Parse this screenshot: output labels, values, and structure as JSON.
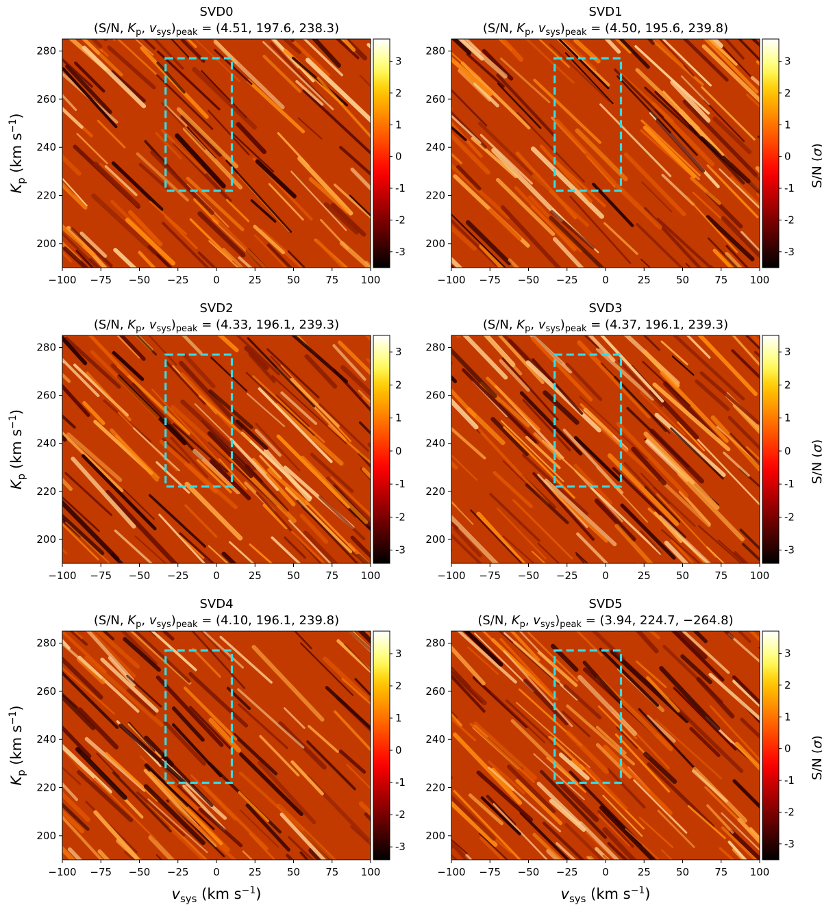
{
  "chart_data": [
    {
      "type": "heatmap",
      "title": "SVD0",
      "peak_label": {
        "sn": "4.51",
        "kp": "197.6",
        "vsys": "238.3"
      },
      "x_ticks": [
        -100,
        -75,
        -50,
        -25,
        0,
        25,
        50,
        75,
        100
      ],
      "y_ticks": [
        200,
        220,
        240,
        260,
        280
      ],
      "xlim": [
        -100,
        100
      ],
      "ylim": [
        190,
        285
      ],
      "colorbar_ticks": [
        -3,
        -2,
        -1,
        0,
        1,
        2,
        3
      ],
      "colorbar_range": [
        -3.5,
        3.7
      ],
      "ylabel": "K_p (km s^-1)",
      "xlabel": "",
      "colorbar_label": "",
      "box": {
        "vsys": [
          -33,
          10
        ],
        "kp": [
          222,
          277
        ]
      },
      "colormap": "gist_heat",
      "box_color": "#33dde6"
    },
    {
      "type": "heatmap",
      "title": "SVD1",
      "peak_label": {
        "sn": "4.50",
        "kp": "195.6",
        "vsys": "239.8"
      },
      "x_ticks": [
        -100,
        -75,
        -50,
        -25,
        0,
        25,
        50,
        75,
        100
      ],
      "y_ticks": [
        200,
        220,
        240,
        260,
        280
      ],
      "xlim": [
        -100,
        100
      ],
      "ylim": [
        190,
        285
      ],
      "colorbar_ticks": [
        -3,
        -2,
        -1,
        0,
        1,
        2,
        3
      ],
      "colorbar_range": [
        -3.5,
        3.7
      ],
      "ylabel": "",
      "xlabel": "",
      "colorbar_label": "S/N (σ)",
      "box": {
        "vsys": [
          -33,
          10
        ],
        "kp": [
          222,
          277
        ]
      },
      "colormap": "gist_heat",
      "box_color": "#33dde6"
    },
    {
      "type": "heatmap",
      "title": "SVD2",
      "peak_label": {
        "sn": "4.33",
        "kp": "196.1",
        "vsys": "239.3"
      },
      "x_ticks": [
        -100,
        -75,
        -50,
        -25,
        0,
        25,
        50,
        75,
        100
      ],
      "y_ticks": [
        200,
        220,
        240,
        260,
        280
      ],
      "xlim": [
        -100,
        100
      ],
      "ylim": [
        190,
        285
      ],
      "colorbar_ticks": [
        -3,
        -2,
        -1,
        0,
        1,
        2,
        3
      ],
      "colorbar_range": [
        -3.4,
        3.5
      ],
      "ylabel": "K_p (km s^-1)",
      "xlabel": "",
      "colorbar_label": "",
      "box": {
        "vsys": [
          -33,
          10
        ],
        "kp": [
          222,
          277
        ]
      },
      "colormap": "gist_heat",
      "box_color": "#33dde6"
    },
    {
      "type": "heatmap",
      "title": "SVD3",
      "peak_label": {
        "sn": "4.37",
        "kp": "196.1",
        "vsys": "239.3"
      },
      "x_ticks": [
        -100,
        -75,
        -50,
        -25,
        0,
        25,
        50,
        75,
        100
      ],
      "y_ticks": [
        200,
        220,
        240,
        260,
        280
      ],
      "xlim": [
        -100,
        100
      ],
      "ylim": [
        190,
        285
      ],
      "colorbar_ticks": [
        -3,
        -2,
        -1,
        0,
        1,
        2,
        3
      ],
      "colorbar_range": [
        -3.4,
        3.5
      ],
      "ylabel": "",
      "xlabel": "",
      "colorbar_label": "S/N (σ)",
      "box": {
        "vsys": [
          -33,
          10
        ],
        "kp": [
          222,
          277
        ]
      },
      "colormap": "gist_heat",
      "box_color": "#33dde6"
    },
    {
      "type": "heatmap",
      "title": "SVD4",
      "peak_label": {
        "sn": "4.10",
        "kp": "196.1",
        "vsys": "239.8"
      },
      "x_ticks": [
        -100,
        -75,
        -50,
        -25,
        0,
        25,
        50,
        75,
        100
      ],
      "y_ticks": [
        200,
        220,
        240,
        260,
        280
      ],
      "xlim": [
        -100,
        100
      ],
      "ylim": [
        190,
        285
      ],
      "colorbar_ticks": [
        -3,
        -2,
        -1,
        0,
        1,
        2,
        3
      ],
      "colorbar_range": [
        -3.4,
        3.7
      ],
      "ylabel": "K_p (km s^-1)",
      "xlabel": "v_sys (km s^-1)",
      "colorbar_label": "",
      "box": {
        "vsys": [
          -33,
          10
        ],
        "kp": [
          222,
          277
        ]
      },
      "colormap": "gist_heat",
      "box_color": "#33dde6"
    },
    {
      "type": "heatmap",
      "title": "SVD5",
      "peak_label": {
        "sn": "3.94",
        "kp": "224.7",
        "vsys": "−264.8"
      },
      "x_ticks": [
        -100,
        -75,
        -50,
        -25,
        0,
        25,
        50,
        75,
        100
      ],
      "y_ticks": [
        200,
        220,
        240,
        260,
        280
      ],
      "xlim": [
        -100,
        100
      ],
      "ylim": [
        190,
        285
      ],
      "colorbar_ticks": [
        -3,
        -2,
        -1,
        0,
        1,
        2,
        3
      ],
      "colorbar_range": [
        -3.5,
        3.7
      ],
      "ylabel": "",
      "xlabel": "v_sys (km s^-1)",
      "colorbar_label": "S/N (σ)",
      "box": {
        "vsys": [
          -33,
          10
        ],
        "kp": [
          222,
          277
        ]
      },
      "colormap": "gist_heat",
      "box_color": "#33dde6"
    }
  ]
}
